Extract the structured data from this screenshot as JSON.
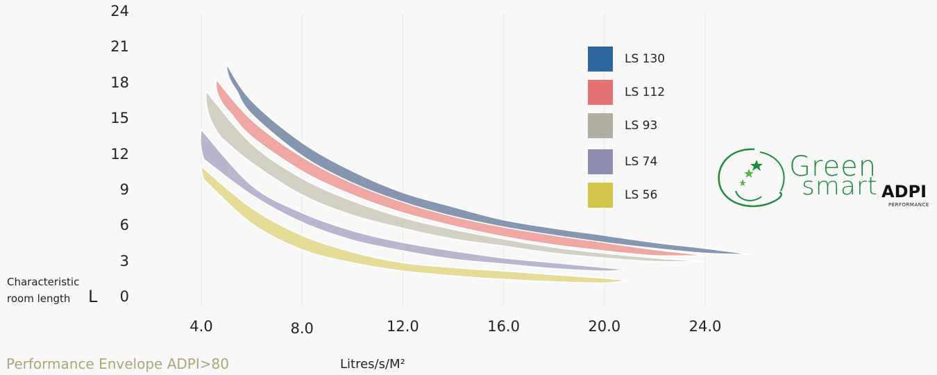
{
  "chart_data": {
    "type": "area",
    "xlabel": "Litres/s/M²",
    "ylabel": "Characteristic room length",
    "ylabel_symbol": "L",
    "xlim": [
      4.0,
      24.0
    ],
    "ylim": [
      0,
      24
    ],
    "x_ticks": [
      "4.0",
      "8.0",
      "12.0",
      "16.0",
      "20.0",
      "24.0"
    ],
    "y_ticks": [
      "24",
      "21",
      "18",
      "15",
      "12",
      "9",
      "6",
      "3",
      "0"
    ],
    "grid": "vertical",
    "legend_position": "top-right",
    "series": [
      {
        "name": "LS 130",
        "color": "#2e67a0",
        "fill": "#8696b0",
        "start_x": 5.0,
        "upper": [
          [
            5.0,
            19.6
          ],
          [
            6.0,
            16.5
          ],
          [
            8.0,
            13.0
          ],
          [
            10.0,
            10.6
          ],
          [
            12.0,
            8.8
          ],
          [
            14.0,
            7.6
          ],
          [
            16.0,
            6.5
          ],
          [
            18.0,
            5.8
          ],
          [
            20.0,
            5.2
          ],
          [
            22.0,
            4.6
          ],
          [
            24.0,
            4.1
          ],
          [
            25.8,
            3.6
          ]
        ],
        "lower": [
          [
            5.4,
            17.4
          ],
          [
            6.0,
            15.4
          ],
          [
            8.0,
            11.9
          ],
          [
            10.0,
            9.6
          ],
          [
            12.0,
            7.9
          ],
          [
            14.0,
            6.8
          ],
          [
            16.0,
            5.9
          ],
          [
            18.0,
            5.2
          ],
          [
            20.0,
            4.6
          ],
          [
            22.0,
            4.1
          ],
          [
            24.0,
            3.7
          ],
          [
            25.8,
            3.6
          ]
        ]
      },
      {
        "name": "LS 112",
        "color": "#e57373",
        "fill": "#eea7a3",
        "start_x": 4.5,
        "upper": [
          [
            4.6,
            18.3
          ],
          [
            6.0,
            14.9
          ],
          [
            8.0,
            11.8
          ],
          [
            10.0,
            9.6
          ],
          [
            12.0,
            8.0
          ],
          [
            14.0,
            6.8
          ],
          [
            16.0,
            5.9
          ],
          [
            18.0,
            5.2
          ],
          [
            20.0,
            4.6
          ],
          [
            22.0,
            4.0
          ],
          [
            24.1,
            3.5
          ]
        ],
        "lower": [
          [
            5.2,
            15.4
          ],
          [
            6.0,
            13.5
          ],
          [
            8.0,
            10.6
          ],
          [
            10.0,
            8.6
          ],
          [
            12.0,
            7.1
          ],
          [
            14.0,
            6.0
          ],
          [
            16.0,
            5.1
          ],
          [
            18.0,
            4.4
          ],
          [
            20.0,
            3.9
          ],
          [
            22.0,
            3.5
          ],
          [
            24.1,
            3.5
          ]
        ]
      },
      {
        "name": "LS 93",
        "color": "#b1afa0",
        "fill": "#d3d1c4",
        "start_x": 4.1,
        "upper": [
          [
            4.2,
            17.3
          ],
          [
            6.0,
            12.9
          ],
          [
            8.0,
            10.0
          ],
          [
            10.0,
            8.1
          ],
          [
            12.0,
            6.7
          ],
          [
            14.0,
            5.7
          ],
          [
            16.0,
            4.9
          ],
          [
            18.0,
            4.2
          ],
          [
            20.0,
            3.7
          ],
          [
            22.0,
            3.3
          ],
          [
            24.0,
            3.0
          ]
        ],
        "lower": [
          [
            4.8,
            13.4
          ],
          [
            6.0,
            11.3
          ],
          [
            8.0,
            8.6
          ],
          [
            10.0,
            6.9
          ],
          [
            12.0,
            5.8
          ],
          [
            14.0,
            4.9
          ],
          [
            16.0,
            4.3
          ],
          [
            18.0,
            3.7
          ],
          [
            20.0,
            3.3
          ],
          [
            22.0,
            3.0
          ],
          [
            24.0,
            3.0
          ]
        ]
      },
      {
        "name": "LS 74",
        "color": "#8f8db0",
        "fill": "#b8b6cf",
        "start_x": 3.9,
        "upper": [
          [
            4.0,
            14.1
          ],
          [
            6.0,
            9.4
          ],
          [
            8.0,
            7.1
          ],
          [
            10.0,
            5.6
          ],
          [
            12.0,
            4.6
          ],
          [
            14.0,
            3.9
          ],
          [
            16.0,
            3.3
          ],
          [
            18.0,
            2.9
          ],
          [
            20.0,
            2.5
          ],
          [
            20.8,
            2.3
          ]
        ],
        "lower": [
          [
            4.1,
            11.6
          ],
          [
            6.0,
            8.6
          ],
          [
            8.0,
            6.3
          ],
          [
            10.0,
            4.8
          ],
          [
            12.0,
            3.9
          ],
          [
            14.0,
            3.2
          ],
          [
            16.0,
            2.8
          ],
          [
            18.0,
            2.4
          ],
          [
            20.0,
            2.2
          ],
          [
            20.8,
            2.3
          ]
        ]
      },
      {
        "name": "LS 56",
        "color": "#d2c64a",
        "fill": "#e4dc97",
        "start_x": 4.0,
        "upper": [
          [
            4.0,
            11.0
          ],
          [
            6.0,
            7.5
          ],
          [
            8.0,
            5.2
          ],
          [
            10.0,
            3.8
          ],
          [
            12.0,
            2.9
          ],
          [
            14.0,
            2.5
          ],
          [
            16.0,
            2.2
          ],
          [
            18.0,
            1.9
          ],
          [
            20.0,
            1.6
          ],
          [
            20.9,
            1.4
          ]
        ],
        "lower": [
          [
            4.1,
            9.9
          ],
          [
            6.0,
            6.2
          ],
          [
            8.0,
            4.0
          ],
          [
            10.0,
            2.9
          ],
          [
            12.0,
            2.2
          ],
          [
            14.0,
            1.8
          ],
          [
            16.0,
            1.5
          ],
          [
            18.0,
            1.3
          ],
          [
            20.0,
            1.2
          ],
          [
            20.9,
            1.4
          ]
        ]
      }
    ]
  },
  "caption": "Performance Envelope ADPI>80",
  "logo": {
    "line1": "Green",
    "line2": "smart",
    "brand": "ADPI",
    "tagline": "PERFORMANCE",
    "color": "#1e8c3a"
  }
}
